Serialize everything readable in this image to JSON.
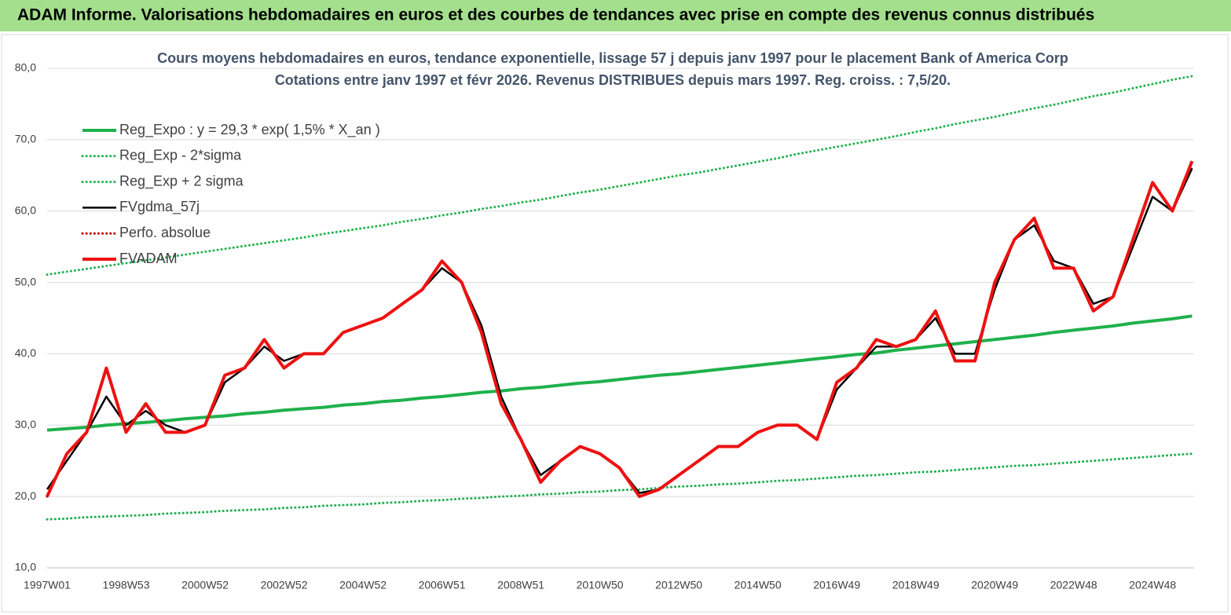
{
  "header": {
    "title": "ADAM Informe. Valorisations hebdomadaires en euros et des courbes de tendances avec prise en compte des revenus connus distribués"
  },
  "chart_data": {
    "type": "line",
    "title": "Cours moyens hebdomadaires en euros, tendance exponentielle, lissage 57 j depuis janv 1997 pour le placement Bank of America Corp",
    "subtitle": "Cotations entre janv 1997 et févr 2026. Revenus DISTRIBUES depuis mars 1997. Reg. croiss. : 7,5/20.",
    "categories": [
      "1997W01",
      null,
      null,
      null,
      "1998W53",
      null,
      null,
      null,
      "2000W52",
      null,
      null,
      null,
      "2002W52",
      null,
      null,
      null,
      "2004W52",
      null,
      null,
      null,
      "2006W51",
      null,
      null,
      null,
      "2008W51",
      null,
      null,
      null,
      "2010W50",
      null,
      null,
      null,
      "2012W50",
      null,
      null,
      null,
      "2014W50",
      null,
      null,
      null,
      "2016W49",
      null,
      null,
      null,
      "2018W49",
      null,
      null,
      null,
      "2020W49",
      null,
      null,
      null,
      "2022W48",
      null,
      null,
      null,
      "2024W48",
      null,
      null
    ],
    "ylim": [
      10,
      80
    ],
    "yticks": [
      {
        "value": 10,
        "label": "10,0"
      },
      {
        "value": 20,
        "label": "20,0"
      },
      {
        "value": 30,
        "label": "30,0"
      },
      {
        "value": 40,
        "label": "40,0"
      },
      {
        "value": 50,
        "label": "50,0"
      },
      {
        "value": 60,
        "label": "60,0"
      },
      {
        "value": 70,
        "label": "70,0"
      },
      {
        "value": 80,
        "label": "80,0"
      }
    ],
    "grid": true,
    "legend": "upper left",
    "series": [
      {
        "name": "Reg_Expo : y = 29,3 * exp( 1,5% *  X_an )",
        "color": "#1fb14c",
        "line_style": "solid",
        "values": [
          29.3,
          29.5,
          29.7,
          30.0,
          30.2,
          30.4,
          30.6,
          30.9,
          31.1,
          31.3,
          31.6,
          31.8,
          32.1,
          32.3,
          32.5,
          32.8,
          33.0,
          33.3,
          33.5,
          33.8,
          34.0,
          34.3,
          34.6,
          34.8,
          35.1,
          35.3,
          35.6,
          35.9,
          36.1,
          36.4,
          36.7,
          37.0,
          37.2,
          37.5,
          37.8,
          38.1,
          38.4,
          38.7,
          39.0,
          39.3,
          39.6,
          39.9,
          40.1,
          40.5,
          40.8,
          41.1,
          41.4,
          41.7,
          42.0,
          42.3,
          42.6,
          43.0,
          43.3,
          43.6,
          43.9,
          44.3,
          44.6,
          44.9,
          45.3
        ]
      },
      {
        "name": "Reg_Exp - 2*sigma",
        "color": "#1fb14c",
        "line_style": "dotted",
        "values": [
          16.8,
          16.9,
          17.1,
          17.2,
          17.3,
          17.4,
          17.6,
          17.7,
          17.8,
          18.0,
          18.1,
          18.2,
          18.4,
          18.5,
          18.7,
          18.8,
          18.9,
          19.1,
          19.2,
          19.4,
          19.5,
          19.7,
          19.8,
          20.0,
          20.1,
          20.3,
          20.4,
          20.6,
          20.7,
          20.9,
          21.0,
          21.2,
          21.4,
          21.5,
          21.7,
          21.8,
          22.0,
          22.2,
          22.3,
          22.5,
          22.7,
          22.9,
          23.0,
          23.2,
          23.4,
          23.5,
          23.7,
          23.9,
          24.1,
          24.3,
          24.4,
          24.6,
          24.8,
          25.0,
          25.2,
          25.4,
          25.6,
          25.8,
          26.0
        ]
      },
      {
        "name": "Reg_Exp + 2 sigma",
        "color": "#1fb14c",
        "line_style": "dotted",
        "values": [
          51.1,
          51.5,
          51.9,
          52.3,
          52.7,
          53.1,
          53.5,
          53.9,
          54.3,
          54.7,
          55.1,
          55.5,
          55.9,
          56.3,
          56.8,
          57.2,
          57.6,
          58.0,
          58.5,
          58.9,
          59.4,
          59.8,
          60.3,
          60.7,
          61.2,
          61.6,
          62.1,
          62.6,
          63.0,
          63.5,
          64.0,
          64.5,
          65.0,
          65.4,
          65.9,
          66.4,
          66.9,
          67.4,
          68.0,
          68.5,
          69.0,
          69.5,
          70.0,
          70.5,
          71.1,
          71.6,
          72.2,
          72.7,
          73.2,
          73.8,
          74.4,
          74.9,
          75.5,
          76.1,
          76.6,
          77.2,
          77.8,
          78.4,
          78.9
        ]
      },
      {
        "name": "FVgdma_57j",
        "color": "#000000",
        "line_style": "solid",
        "values": [
          21,
          25,
          29,
          34,
          30,
          32,
          30,
          29,
          30,
          36,
          38,
          41,
          39,
          40,
          40,
          43,
          44,
          45,
          47,
          49,
          52,
          50,
          44,
          34,
          28,
          23,
          25,
          27,
          26,
          24,
          20.5,
          21,
          23,
          25,
          27,
          27,
          29,
          30,
          30,
          28,
          35,
          38,
          41,
          41,
          42,
          45,
          40,
          40,
          49,
          56,
          58,
          53,
          52,
          47,
          48,
          55,
          62,
          60,
          66
        ]
      },
      {
        "name": "Perfo. absolue",
        "color": "#c00000",
        "line_style": "dotted",
        "values": [
          20,
          26,
          29,
          38,
          29,
          33,
          29,
          29,
          30,
          37,
          38,
          42,
          38,
          40,
          40,
          43,
          44,
          45,
          47,
          49,
          53,
          50,
          43,
          33,
          28,
          22,
          25,
          27,
          26,
          24,
          20,
          21,
          23,
          25,
          27,
          27,
          29,
          30,
          30,
          28,
          36,
          38,
          42,
          41,
          42,
          46,
          39,
          39,
          50,
          56,
          59,
          52,
          52,
          46,
          48,
          56,
          64,
          60,
          67
        ]
      },
      {
        "name": "FVADAM",
        "color": "#ee1111",
        "line_style": "solid",
        "values": [
          20,
          26,
          29,
          38,
          29,
          33,
          29,
          29,
          30,
          37,
          38,
          42,
          38,
          40,
          40,
          43,
          44,
          45,
          47,
          49,
          53,
          50,
          43,
          33,
          28,
          22,
          25,
          27,
          26,
          24,
          20,
          21,
          23,
          25,
          27,
          27,
          29,
          30,
          30,
          28,
          36,
          38,
          42,
          41,
          42,
          46,
          39,
          39,
          50,
          56,
          59,
          52,
          52,
          46,
          48,
          56,
          64,
          60,
          67
        ]
      }
    ]
  }
}
